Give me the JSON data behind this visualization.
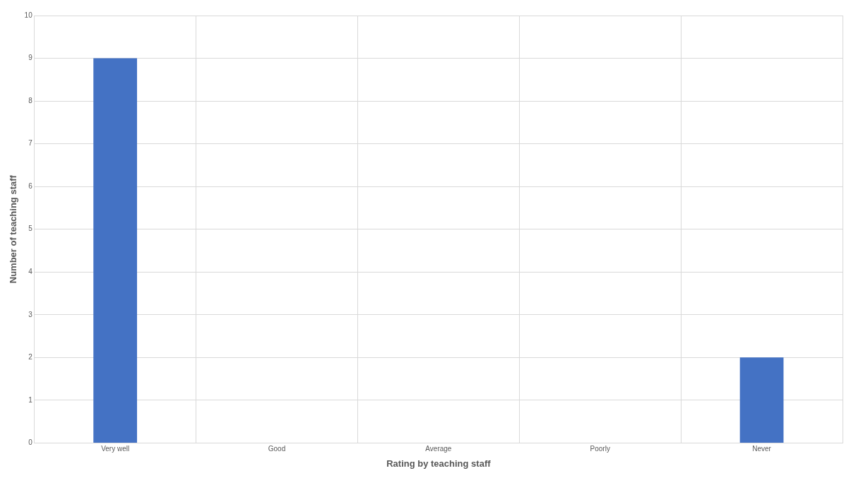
{
  "chart_data": {
    "type": "bar",
    "xlabel": "Rating by teaching staff",
    "ylabel": "Number of teaching staff",
    "categories": [
      "Very well",
      "Good",
      "Average",
      "Poorly",
      "Never"
    ],
    "values": [
      9,
      0,
      0,
      0,
      2
    ],
    "color": "#4472c4",
    "ylim": [
      0,
      10
    ],
    "yticks": [
      0,
      1,
      2,
      3,
      4,
      5,
      6,
      7,
      8,
      9,
      10
    ],
    "grid": true
  }
}
